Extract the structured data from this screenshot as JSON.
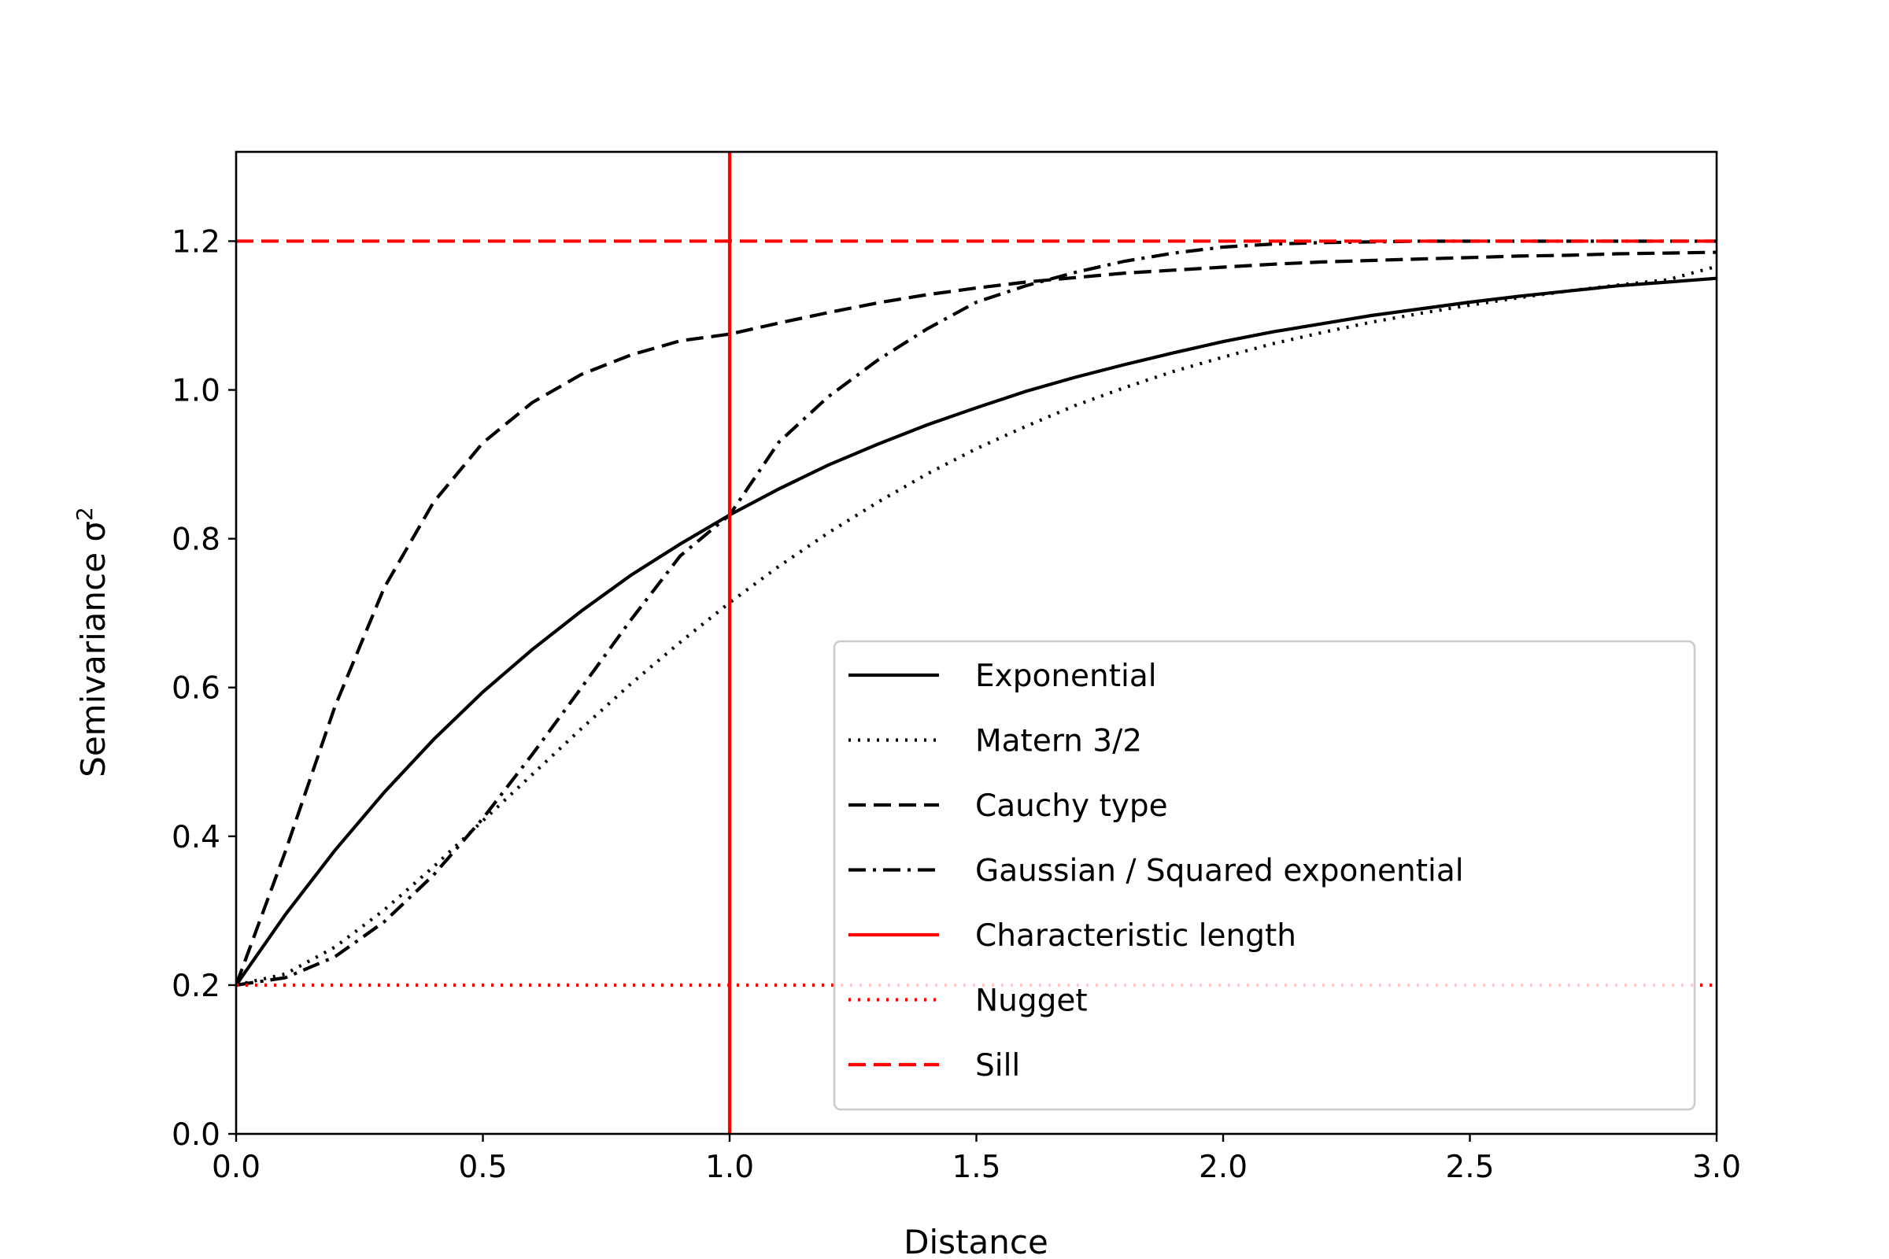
{
  "chart_data": {
    "type": "line",
    "xlabel": "Distance",
    "ylabel": "Semivariance σ",
    "ylabel_superscript": "2",
    "xlim": [
      0.0,
      3.0
    ],
    "ylim": [
      0.0,
      1.32
    ],
    "x_ticks": [
      0.0,
      0.5,
      1.0,
      1.5,
      2.0,
      2.5,
      3.0
    ],
    "x_tick_labels": [
      "0.0",
      "0.5",
      "1.0",
      "1.5",
      "2.0",
      "2.5",
      "3.0"
    ],
    "y_ticks": [
      0.0,
      0.2,
      0.4,
      0.6,
      0.8,
      1.0,
      1.2
    ],
    "y_tick_labels": [
      "0.0",
      "0.2",
      "0.4",
      "0.6",
      "0.8",
      "1.0",
      "1.2"
    ],
    "grid": false,
    "legend_position": "lower-right",
    "x": [
      0.0,
      0.1,
      0.2,
      0.3,
      0.4,
      0.5,
      0.6,
      0.7,
      0.8,
      0.9,
      1.0,
      1.1,
      1.2,
      1.3,
      1.4,
      1.5,
      1.6,
      1.7,
      1.8,
      1.9,
      2.0,
      2.1,
      2.2,
      2.3,
      2.4,
      2.5,
      2.6,
      2.7,
      2.8,
      2.9,
      3.0
    ],
    "series": [
      {
        "name": "Exponential",
        "color": "#000000",
        "style": "solid",
        "values": [
          0.2,
          0.295,
          0.381,
          0.459,
          0.53,
          0.594,
          0.651,
          0.703,
          0.751,
          0.793,
          0.832,
          0.867,
          0.899,
          0.927,
          0.953,
          0.976,
          0.998,
          1.017,
          1.034,
          1.05,
          1.065,
          1.078,
          1.089,
          1.1,
          1.109,
          1.118,
          1.126,
          1.133,
          1.14,
          1.145,
          1.15
        ]
      },
      {
        "name": "Matern 3/2",
        "color": "#000000",
        "style": "dotted",
        "values": [
          0.2,
          0.215,
          0.251,
          0.301,
          0.359,
          0.421,
          0.483,
          0.545,
          0.605,
          0.661,
          0.714,
          0.763,
          0.808,
          0.849,
          0.887,
          0.921,
          0.951,
          0.979,
          1.003,
          1.025,
          1.044,
          1.062,
          1.077,
          1.091,
          1.103,
          1.114,
          1.124,
          1.133,
          1.141,
          1.148,
          1.166
        ]
      },
      {
        "name": "Cauchy type",
        "color": "#000000",
        "style": "dashed",
        "values": [
          0.2,
          0.38,
          0.574,
          0.734,
          0.849,
          0.929,
          0.983,
          1.021,
          1.047,
          1.066,
          1.075,
          1.09,
          1.104,
          1.117,
          1.128,
          1.137,
          1.145,
          1.151,
          1.157,
          1.161,
          1.165,
          1.169,
          1.172,
          1.174,
          1.176,
          1.178,
          1.18,
          1.181,
          1.183,
          1.184,
          1.185
        ]
      },
      {
        "name": "Gaussian / Squared exponential",
        "color": "#000000",
        "style": "dashdot",
        "values": [
          0.2,
          0.21,
          0.238,
          0.285,
          0.348,
          0.424,
          0.51,
          0.6,
          0.691,
          0.777,
          0.832,
          0.93,
          0.991,
          1.04,
          1.082,
          1.118,
          1.14,
          1.158,
          1.173,
          1.184,
          1.192,
          1.196,
          1.198,
          1.199,
          1.2,
          1.2,
          1.2,
          1.2,
          1.2,
          1.2,
          1.2
        ]
      },
      {
        "name": "Characteristic length",
        "color": "#ff0000",
        "style": "solid",
        "orientation": "vertical",
        "x_value": 1.0
      },
      {
        "name": "Nugget",
        "color": "#ff0000",
        "style": "dotted",
        "orientation": "horizontal",
        "y_value": 0.2
      },
      {
        "name": "Sill",
        "color": "#ff0000",
        "style": "dashed",
        "orientation": "horizontal",
        "y_value": 1.2
      }
    ]
  }
}
